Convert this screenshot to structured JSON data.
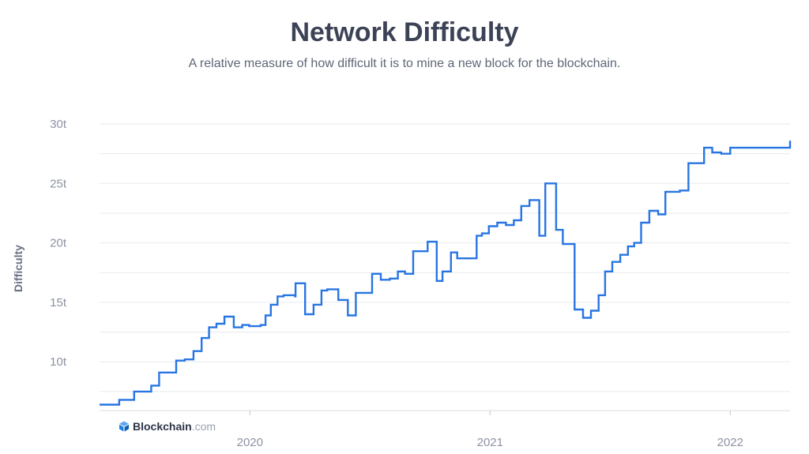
{
  "header": {
    "title": "Network Difficulty",
    "subtitle": "A relative measure of how difficult it is to mine a new block for the blockchain."
  },
  "brand": {
    "name": "Blockchain",
    "tld": ".com",
    "icon": "blockchain-cube-icon",
    "color": "#1a7fe0"
  },
  "colors": {
    "line": "#2775e3",
    "grid": "#e8eaee",
    "tick_text": "#8b92a3"
  },
  "chart_data": {
    "type": "line",
    "title": "Network Difficulty",
    "ylabel": "Difficulty",
    "xlabel": "",
    "x_ticks": [
      {
        "label": "2020",
        "x": 2020.0
      },
      {
        "label": "2021",
        "x": 2021.0
      },
      {
        "label": "2022",
        "x": 2022.0
      }
    ],
    "y_ticks": [
      {
        "label": "10t",
        "value": 10
      },
      {
        "label": "15t",
        "value": 15
      },
      {
        "label": "20t",
        "value": 20
      },
      {
        "label": "25t",
        "value": 25
      },
      {
        "label": "30t",
        "value": 30
      }
    ],
    "xlim": [
      2019.374,
      2022.249
    ],
    "ylim": [
      5.9,
      30
    ],
    "grid": true,
    "legend": "none",
    "step": true,
    "series": [
      {
        "values": [
          [
            2019.374,
            6.4
          ],
          [
            2019.456,
            6.8
          ],
          [
            2019.518,
            7.5
          ],
          [
            2019.589,
            8.0
          ],
          [
            2019.622,
            9.1
          ],
          [
            2019.693,
            10.1
          ],
          [
            2019.729,
            10.2
          ],
          [
            2019.765,
            10.9
          ],
          [
            2019.799,
            12.0
          ],
          [
            2019.83,
            12.9
          ],
          [
            2019.861,
            13.2
          ],
          [
            2019.894,
            13.8
          ],
          [
            2019.933,
            12.9
          ],
          [
            2019.968,
            13.1
          ],
          [
            2019.997,
            13.0
          ],
          [
            2020.045,
            13.1
          ],
          [
            2020.065,
            13.9
          ],
          [
            2020.087,
            14.8
          ],
          [
            2020.115,
            15.5
          ],
          [
            2020.14,
            15.6
          ],
          [
            2020.188,
            15.5
          ],
          [
            2020.19,
            16.6
          ],
          [
            2020.23,
            14.0
          ],
          [
            2020.265,
            14.8
          ],
          [
            2020.298,
            16.0
          ],
          [
            2020.322,
            16.1
          ],
          [
            2020.368,
            15.2
          ],
          [
            2020.408,
            13.9
          ],
          [
            2020.441,
            15.8
          ],
          [
            2020.509,
            17.4
          ],
          [
            2020.545,
            16.9
          ],
          [
            2020.583,
            17.0
          ],
          [
            2020.616,
            17.6
          ],
          [
            2020.646,
            17.4
          ],
          [
            2020.68,
            19.3
          ],
          [
            2020.74,
            20.1
          ],
          [
            2020.778,
            16.8
          ],
          [
            2020.802,
            17.6
          ],
          [
            2020.837,
            19.2
          ],
          [
            2020.863,
            18.7
          ],
          [
            2020.918,
            18.7
          ],
          [
            2020.944,
            20.6
          ],
          [
            2020.966,
            20.8
          ],
          [
            2020.995,
            21.4
          ],
          [
            2021.03,
            21.7
          ],
          [
            2021.066,
            21.5
          ],
          [
            2021.099,
            21.9
          ],
          [
            2021.13,
            23.1
          ],
          [
            2021.164,
            23.6
          ],
          [
            2021.205,
            20.6
          ],
          [
            2021.23,
            25.0
          ],
          [
            2021.275,
            21.1
          ],
          [
            2021.303,
            19.9
          ],
          [
            2021.352,
            14.4
          ],
          [
            2021.387,
            13.7
          ],
          [
            2021.42,
            14.3
          ],
          [
            2021.452,
            15.6
          ],
          [
            2021.479,
            17.6
          ],
          [
            2021.509,
            18.4
          ],
          [
            2021.542,
            19.0
          ],
          [
            2021.574,
            19.7
          ],
          [
            2021.6,
            20.0
          ],
          [
            2021.629,
            21.7
          ],
          [
            2021.663,
            22.7
          ],
          [
            2021.7,
            22.4
          ],
          [
            2021.73,
            24.3
          ],
          [
            2021.79,
            24.4
          ],
          [
            2021.826,
            26.7
          ],
          [
            2021.891,
            28.0
          ],
          [
            2021.925,
            27.6
          ],
          [
            2021.962,
            27.5
          ],
          [
            2022.0,
            28.0
          ],
          [
            2022.249,
            28.6
          ]
        ]
      }
    ]
  }
}
